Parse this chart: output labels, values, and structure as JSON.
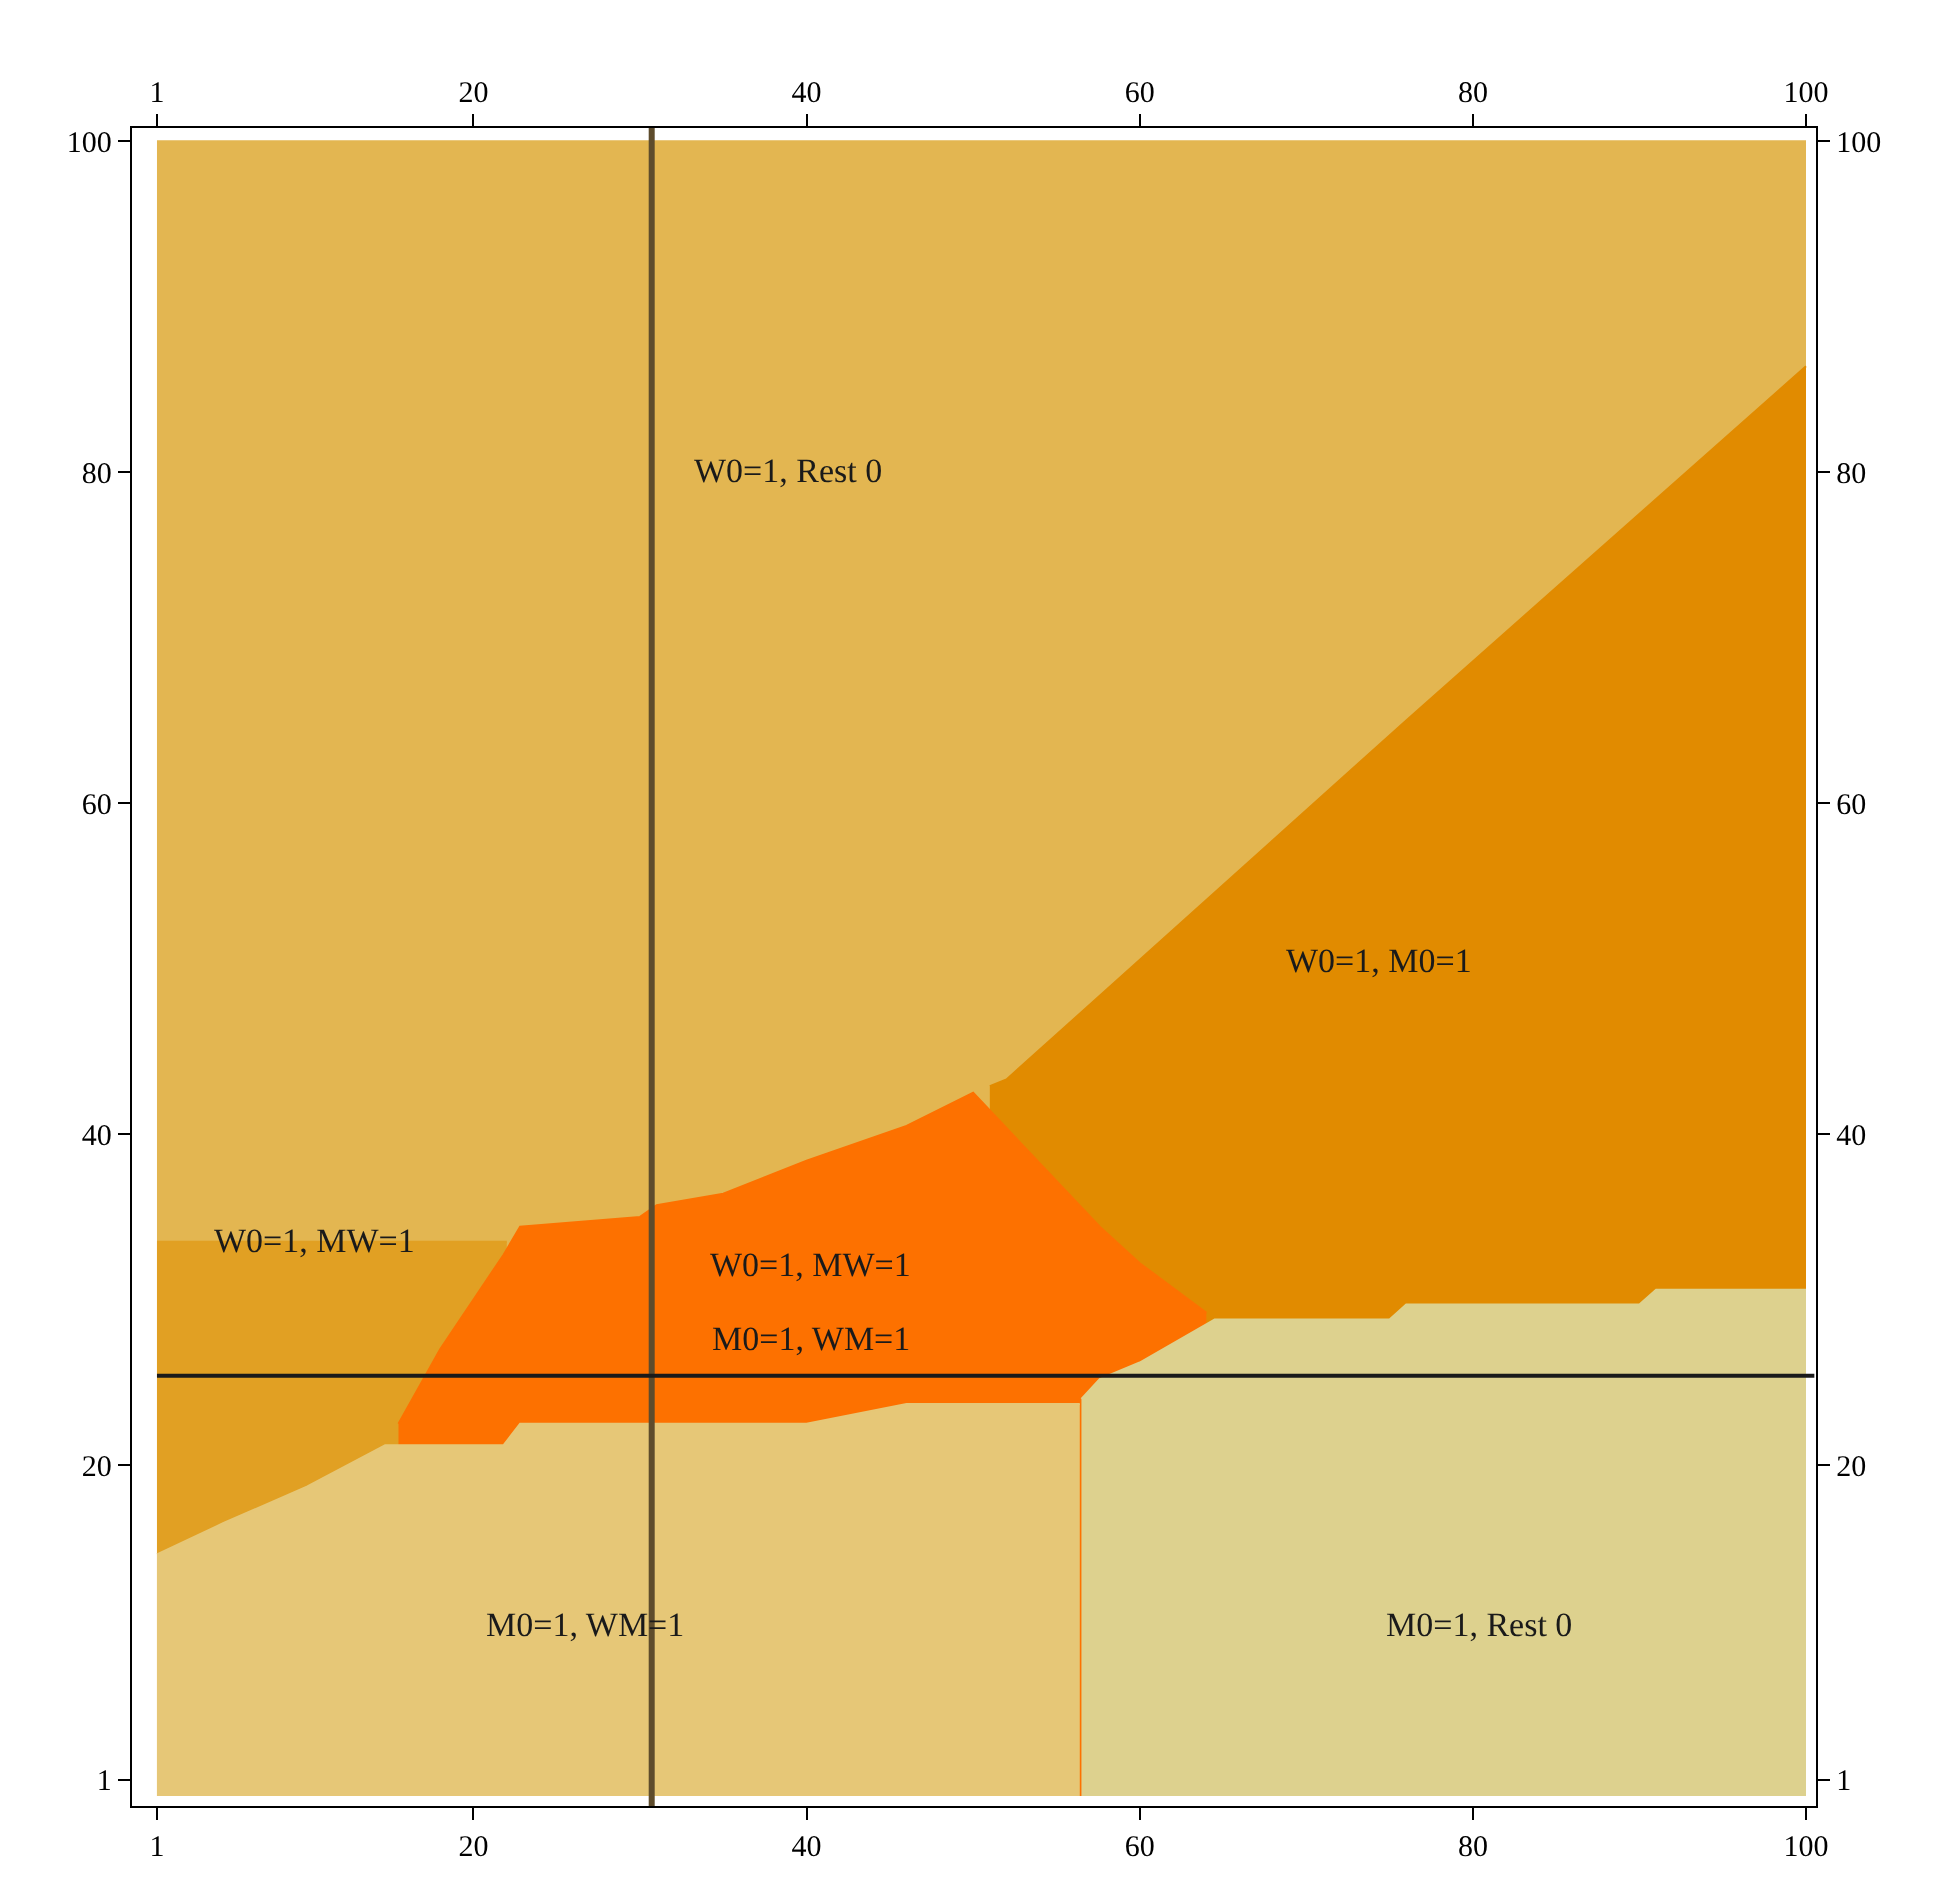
{
  "chart_data": {
    "type": "area",
    "xlim": [
      -0.5,
      100.6
    ],
    "xticks": [
      1,
      20,
      40,
      60,
      80,
      100
    ],
    "x2lim": [
      -0.5,
      100.6
    ],
    "x2ticks": [
      1,
      20,
      40,
      60,
      80,
      100
    ],
    "ylim": [
      -0.6,
      100.8
    ],
    "yticks": [
      1,
      20,
      40,
      60,
      80,
      100
    ],
    "y2lim": [
      -0.6,
      100.8
    ],
    "y2ticks": [
      1,
      20,
      40,
      60,
      80,
      100
    ],
    "series": [
      {
        "color": "#e3b651",
        "x": [
          1,
          100
        ],
        "values": [
          100,
          100
        ]
      },
      {
        "color": "#e18b00",
        "x": [
          51,
          52,
          76,
          100
        ],
        "values": [
          42.9,
          43.3,
          65,
          86.4
        ]
      },
      {
        "color": "#e1a023",
        "x": [
          1,
          22
        ],
        "values": [
          33.5,
          33.5
        ]
      },
      {
        "color": "#fd7100",
        "x": [
          15.5,
          18,
          21.8,
          22.8,
          30,
          31,
          35,
          40,
          46,
          50,
          57.6,
          60,
          64
        ],
        "values": [
          22.5,
          27,
          32.7,
          34.4,
          35,
          35.7,
          36.4,
          38.4,
          40.5,
          42.5,
          34.4,
          32.2,
          29.2
        ]
      },
      {
        "color": "#e6c777",
        "x": [
          1,
          5,
          10,
          14.7,
          21.8,
          22.8,
          40,
          46,
          56.4
        ],
        "values": [
          14.6,
          16.5,
          18.7,
          21.2,
          21.2,
          22.5,
          22.5,
          23.7,
          23.7
        ]
      },
      {
        "color": "#ddd18e",
        "x": [
          56.5,
          57.6,
          60,
          64.5,
          75,
          76,
          90,
          91,
          100
        ],
        "values": [
          24,
          25.2,
          26.2,
          28.8,
          28.8,
          29.7,
          29.7,
          30.6,
          30.6
        ]
      }
    ],
    "ref_lines": [
      {
        "axis": "x",
        "value": 30.7,
        "color": "#5e4c2c"
      },
      {
        "axis": "y",
        "value": 25.4,
        "color": "#1a1a1a"
      }
    ],
    "annotations": [
      "W0=1, Rest 0",
      "W0=1, M0=1",
      "W0=1, MW=1",
      "W0=1, MW=1",
      "M0=1, WM=1",
      "M0=1, WM=1",
      "M0=1, Rest 0"
    ]
  }
}
